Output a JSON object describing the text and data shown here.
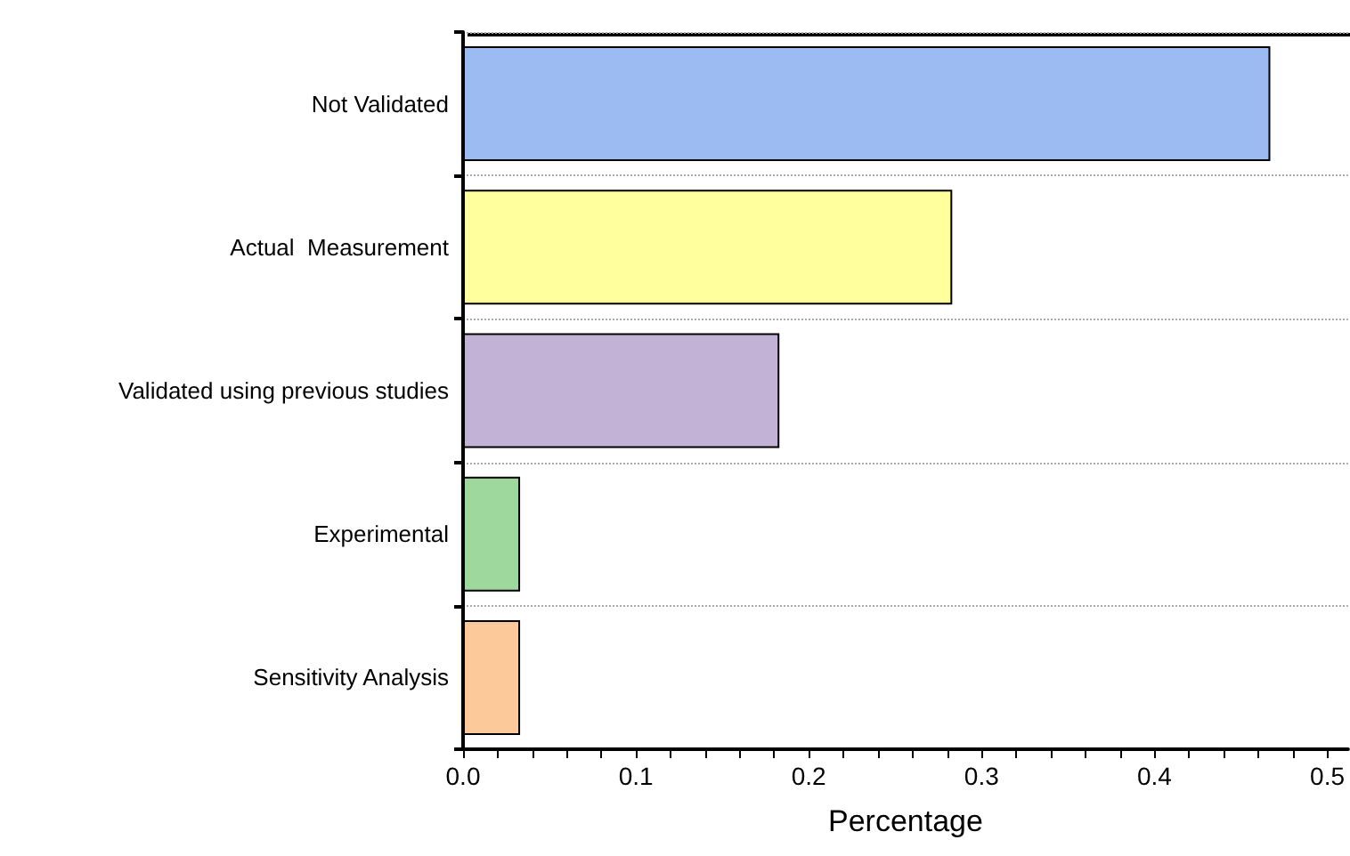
{
  "chart_data": {
    "type": "bar",
    "orientation": "horizontal",
    "xlabel": "Percentage",
    "categories": [
      "Not Validated",
      "Actual  Measurement",
      "Validated using previous studies",
      "Experimental",
      "Sensitivity Analysis"
    ],
    "values": [
      0.467,
      0.283,
      0.183,
      0.033,
      0.033
    ],
    "colors": [
      "#9bbbf2",
      "#ffff9e",
      "#c2b2d6",
      "#9fd89c",
      "#fbc99a"
    ],
    "xlim": [
      0,
      0.512
    ],
    "xticks": [
      {
        "value": 0,
        "label": "0.0"
      },
      {
        "value": 0.1,
        "label": "0.1"
      },
      {
        "value": 0.2,
        "label": "0.2"
      },
      {
        "value": 0.3,
        "label": "0.3"
      },
      {
        "value": 0.4,
        "label": "0.4"
      },
      {
        "value": 0.5,
        "label": "0.5"
      }
    ],
    "grid": "y"
  }
}
